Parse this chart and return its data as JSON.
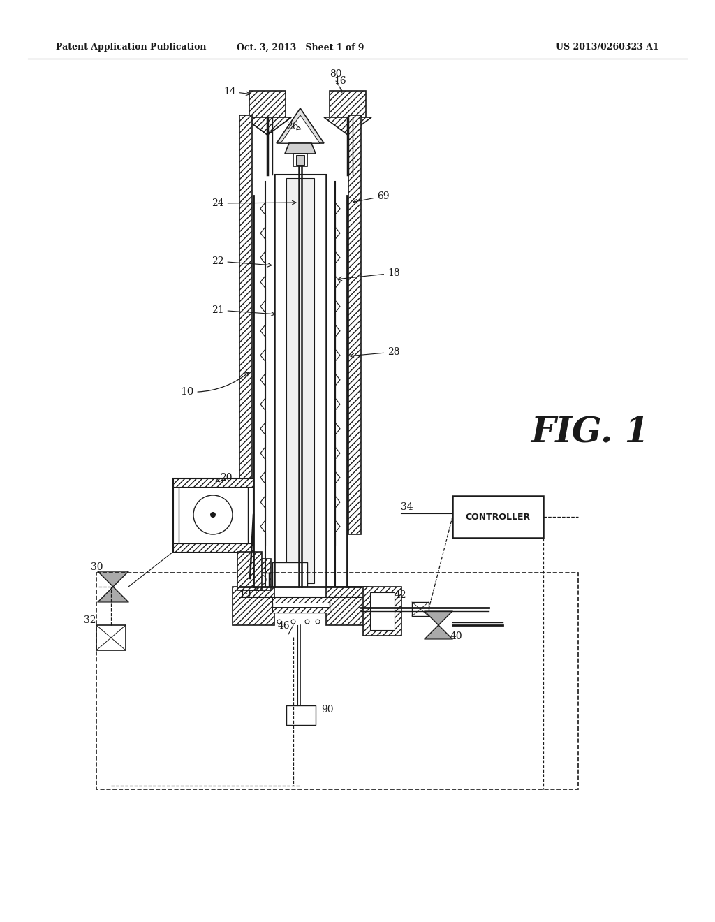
{
  "bg_color": "#ffffff",
  "header_left": "Patent Application Publication",
  "header_mid": "Oct. 3, 2013   Sheet 1 of 9",
  "header_right": "US 2013/0260323 A1",
  "fig_label": "FIG. 1"
}
